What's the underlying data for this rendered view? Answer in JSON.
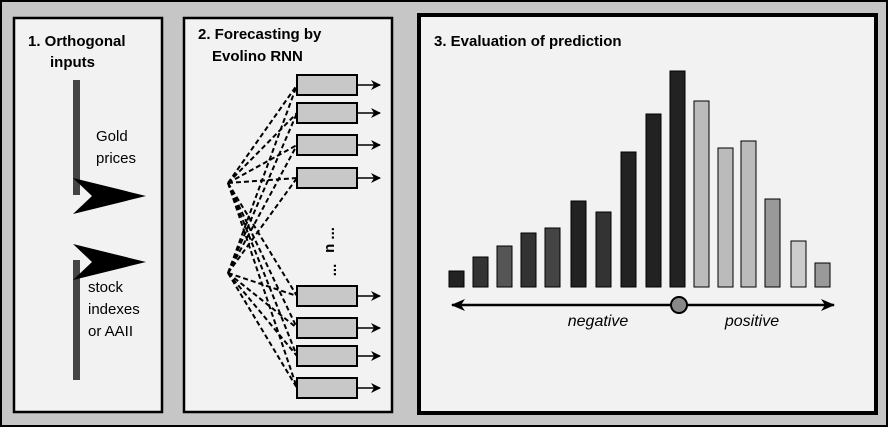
{
  "panels": [
    {
      "title": [
        "1. Orthogonal",
        "inputs"
      ],
      "labels": [
        [
          "Gold",
          "prices"
        ],
        [
          "stock",
          "indexes",
          "or AAII"
        ]
      ]
    },
    {
      "title": [
        "2. Forecasting by",
        "Evolino RNN"
      ],
      "labels": [
        "n ...",
        "..."
      ]
    },
    {
      "title": [
        "3. Evaluation of prediction"
      ],
      "labels": [
        "negative",
        "positive"
      ]
    }
  ]
}
